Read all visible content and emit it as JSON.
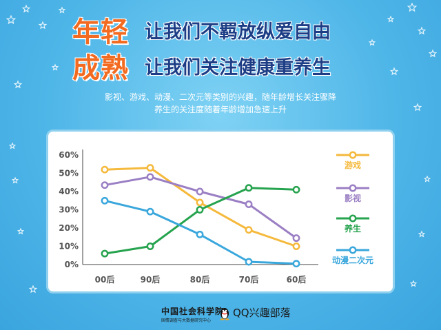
{
  "headline": {
    "big1": "年轻",
    "tag1": "让我们不羁放纵爱自由",
    "big2": "成熟",
    "tag2": "让我们关注健康重养生"
  },
  "description": {
    "line1": "影视、游戏、动漫、二次元等类别的兴趣，随年龄增长关注骤降",
    "line2": "养生的关注度随着年龄增加急速上升"
  },
  "chart_data": {
    "type": "line",
    "categories": [
      "00后",
      "90后",
      "80后",
      "70后",
      "60后"
    ],
    "y_ticks": [
      "60%",
      "50%",
      "40%",
      "30%",
      "20%",
      "10%",
      "0%"
    ],
    "ylim": [
      0,
      60
    ],
    "grid": false,
    "legend_position": "right",
    "series": [
      {
        "name": "游戏",
        "color": "#f5b93c",
        "values": [
          52,
          53,
          34,
          19,
          10
        ]
      },
      {
        "name": "影视",
        "color": "#9b7fc4",
        "values": [
          43.5,
          48,
          40,
          33,
          14.5
        ]
      },
      {
        "name": "养生",
        "color": "#26a34e",
        "values": [
          6,
          10,
          30,
          42,
          41
        ]
      },
      {
        "name": "动漫二次元",
        "color": "#3aa7dc",
        "values": [
          35,
          29,
          16.5,
          1.5,
          0.5
        ]
      }
    ]
  },
  "footer": {
    "org_name": "中国社会科学院",
    "org_sub": "国情调查与大数据研究中心",
    "partner": "QQ兴趣部落"
  },
  "icons": {
    "background_decoration": "star-icon",
    "partner_logo": "qq-penguin-icon"
  }
}
